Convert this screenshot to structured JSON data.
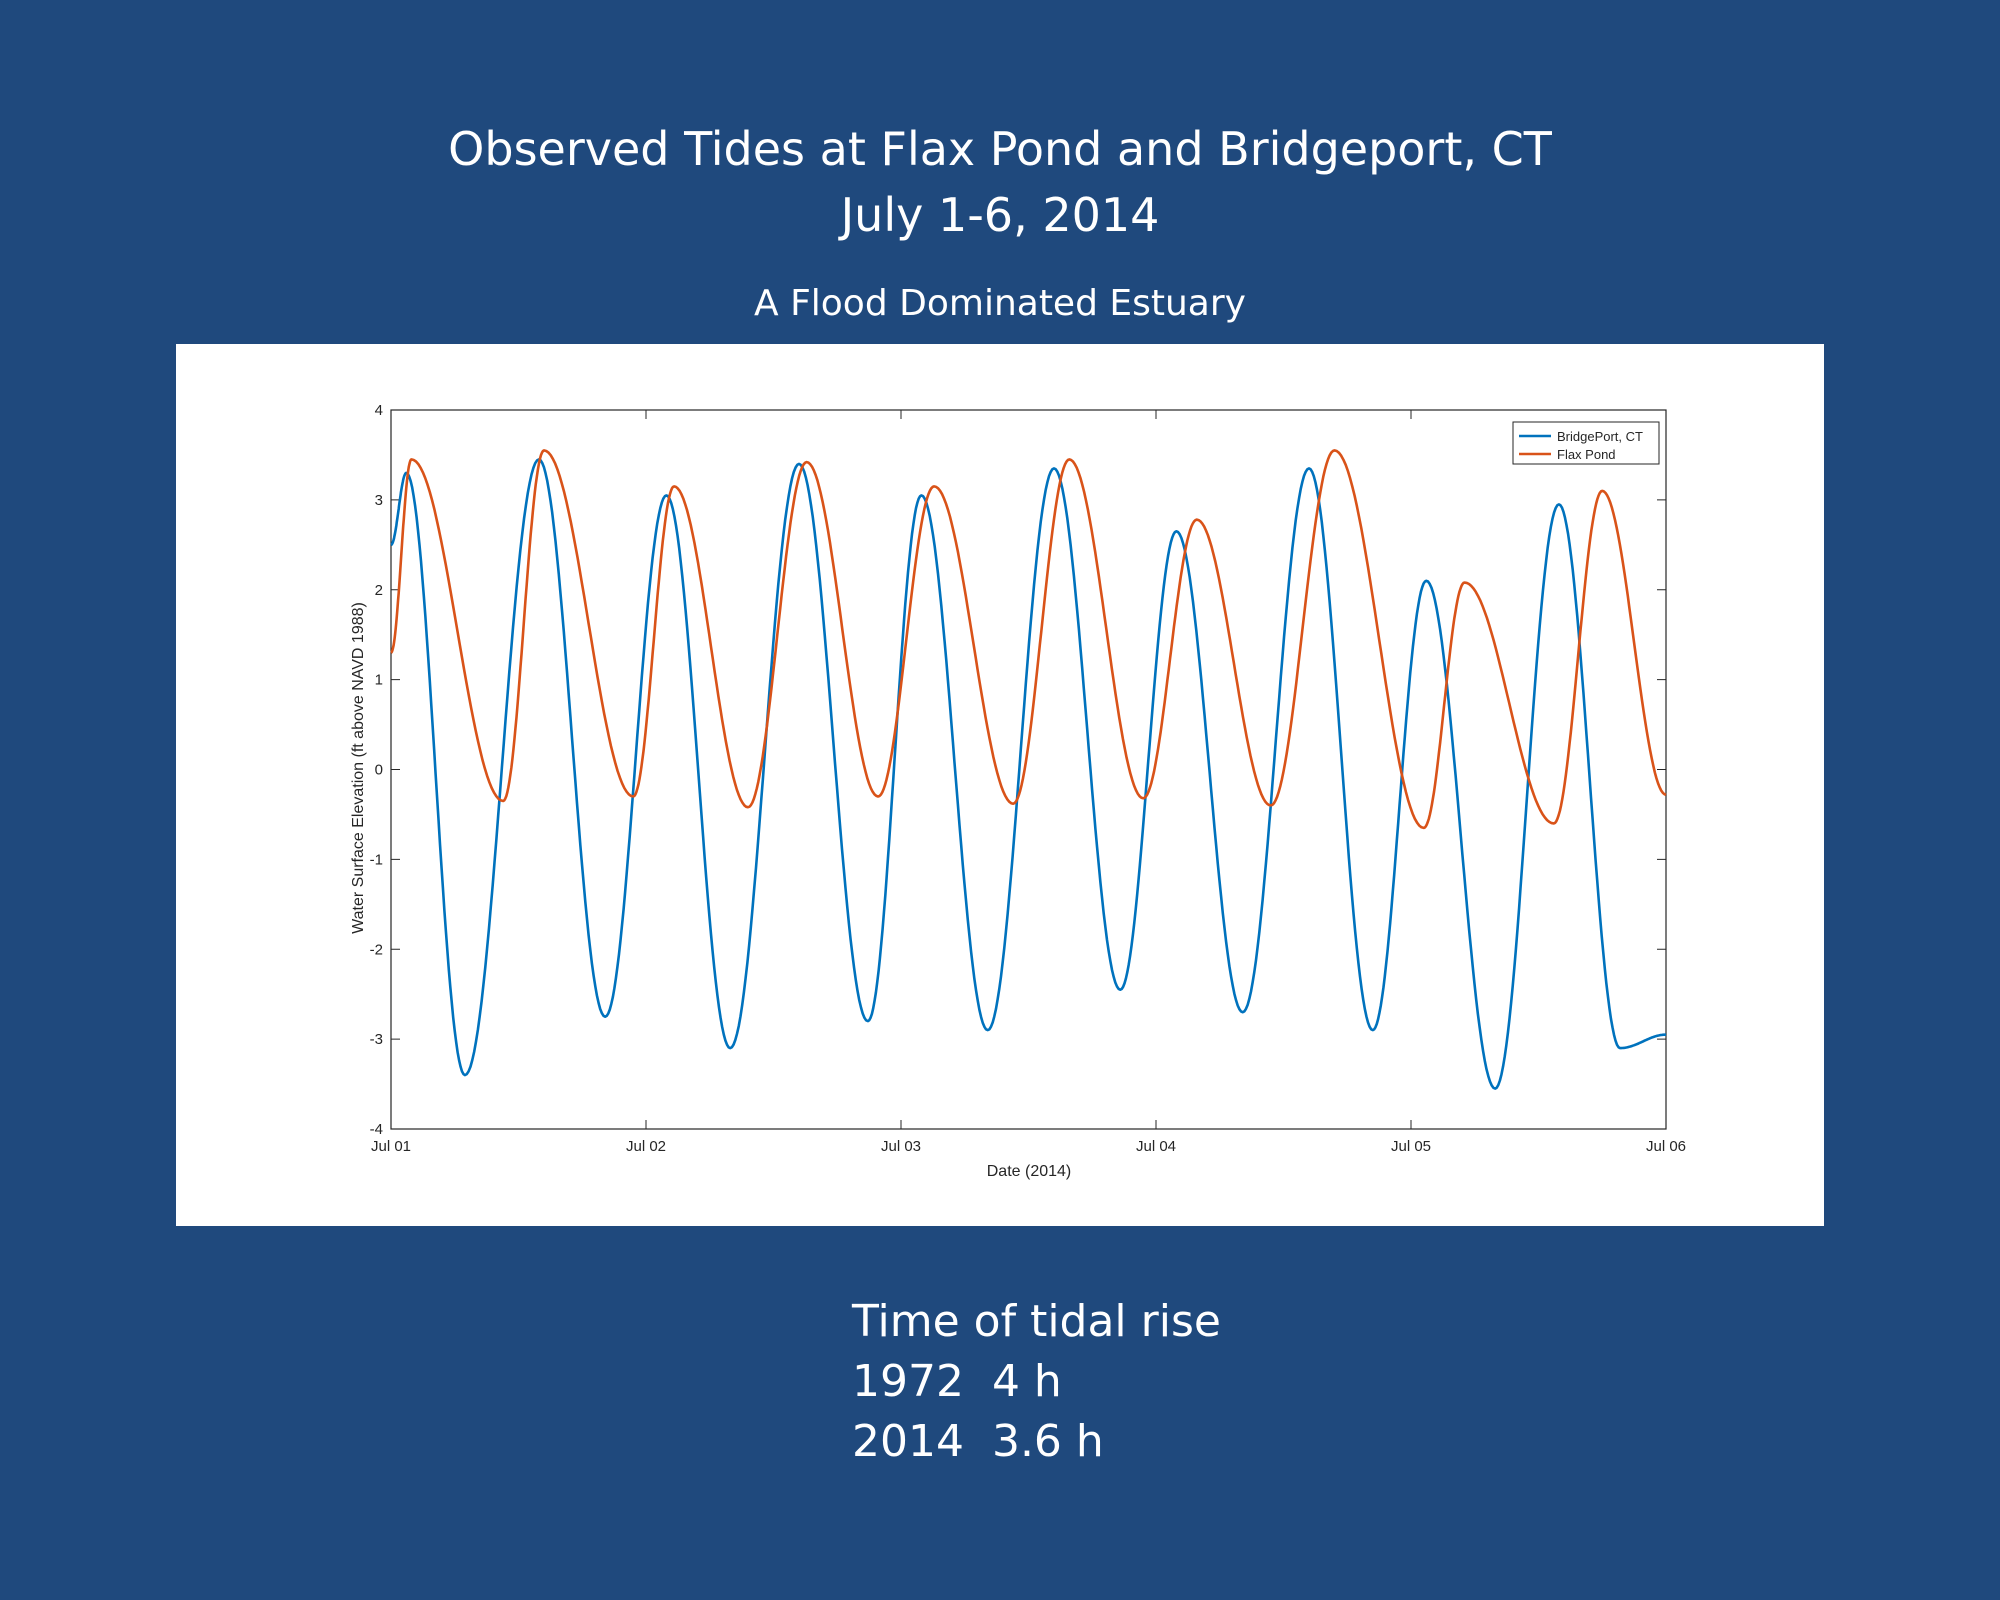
{
  "slide": {
    "title_line1": "Observed Tides at Flax Pond and Bridgeport, CT",
    "title_line2": "July 1-6, 2014",
    "subtitle": "A Flood Dominated Estuary",
    "notes": [
      "Time of tidal rise",
      "1972  4 h",
      "2014  3.6 h"
    ],
    "background_color": "#1f497d"
  },
  "chart_data": {
    "type": "line",
    "title": "",
    "xlabel": "Date (2014)",
    "ylabel": "Water Surface Elevation (ft above NAVD 1988)",
    "xlim": [
      0,
      5
    ],
    "ylim": [
      -4,
      4
    ],
    "x_ticks": [
      0,
      1,
      2,
      3,
      4,
      5
    ],
    "x_tick_labels": [
      "Jul 01",
      "Jul 02",
      "Jul 03",
      "Jul 04",
      "Jul 05",
      "Jul 06"
    ],
    "y_ticks": [
      -4,
      -3,
      -2,
      -1,
      0,
      1,
      2,
      3,
      4
    ],
    "y_tick_labels": [
      "-4",
      "-3",
      "-2",
      "-1",
      "0",
      "1",
      "2",
      "3",
      "4"
    ],
    "legend_position": "top-right",
    "series": [
      {
        "name": "BridgePort, CT",
        "color": "#0072bd",
        "x": [
          0.0,
          0.06,
          0.29,
          0.58,
          0.84,
          1.08,
          1.33,
          1.6,
          1.87,
          2.08,
          2.34,
          2.6,
          2.86,
          3.08,
          3.34,
          3.6,
          3.85,
          4.06,
          4.33,
          4.58,
          4.82,
          5.0
        ],
        "y": [
          2.5,
          3.3,
          -3.4,
          3.45,
          -2.75,
          3.05,
          -3.1,
          3.4,
          -2.8,
          3.05,
          -2.9,
          3.35,
          -2.45,
          2.65,
          -2.7,
          3.35,
          -2.9,
          2.1,
          -3.55,
          2.95,
          -3.1,
          -2.95
        ]
      },
      {
        "name": "Flax Pond",
        "color": "#d95319",
        "x": [
          0.0,
          0.08,
          0.44,
          0.6,
          0.95,
          1.11,
          1.4,
          1.63,
          1.91,
          2.13,
          2.44,
          2.66,
          2.95,
          3.16,
          3.45,
          3.7,
          4.05,
          4.21,
          4.56,
          4.75,
          5.0
        ],
        "y": [
          1.3,
          3.45,
          -0.35,
          3.55,
          -0.3,
          3.15,
          -0.42,
          3.42,
          -0.3,
          3.15,
          -0.38,
          3.45,
          -0.32,
          2.78,
          -0.4,
          3.55,
          -0.65,
          2.08,
          -0.6,
          3.1,
          -0.28
        ]
      }
    ]
  }
}
